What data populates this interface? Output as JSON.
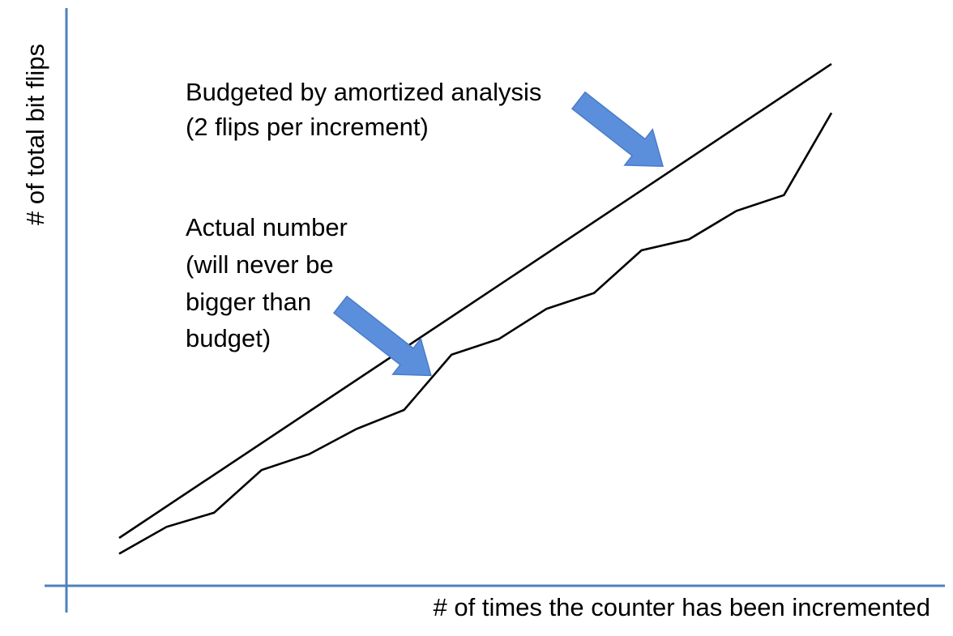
{
  "colors": {
    "axis": "#4F81BD",
    "line": "#000000",
    "arrow_fill": "#5B8FDB",
    "arrow_stroke": "#4A7CC8"
  },
  "chart_data": {
    "type": "line",
    "title": "",
    "xlabel": "# of times the counter has been incremented",
    "ylabel": "# of total bit flips",
    "xlim": [
      0,
      15.5
    ],
    "ylim": [
      0,
      33
    ],
    "grid": false,
    "legend": "none",
    "series": [
      {
        "x": [
          0,
          15
        ],
        "y": [
          2,
          32
        ]
      },
      {
        "x": [
          0,
          1,
          2,
          3,
          4,
          5,
          6,
          7,
          8,
          9,
          10,
          11,
          12,
          13,
          14,
          15
        ],
        "y": [
          1,
          2.7,
          3.6,
          6.3,
          7.3,
          8.9,
          10.1,
          13.6,
          14.6,
          16.5,
          17.5,
          20.2,
          20.9,
          22.7,
          23.7,
          28.9
        ]
      }
    ],
    "annotations": [
      {
        "lines": [
          "Budgeted by amortized analysis",
          "(2 flips per increment)"
        ]
      },
      {
        "lines": [
          "Actual number",
          "(will never be",
          "bigger than",
          "budget)"
        ]
      }
    ]
  }
}
